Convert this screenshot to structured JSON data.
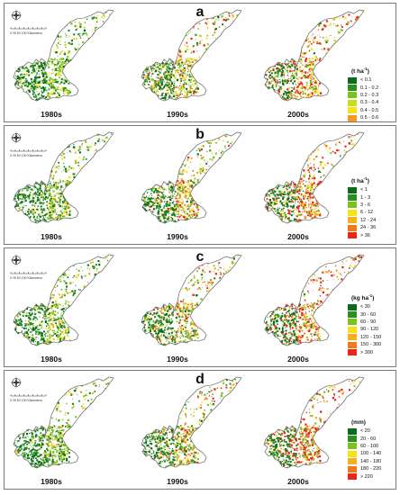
{
  "panels": [
    {
      "letter": "a",
      "unit_prefix": "(t ha",
      "unit_sup": "-1",
      "unit_suffix": ")",
      "legend": [
        {
          "label": "< 0.1",
          "color": "#0a6b1b"
        },
        {
          "label": "0.1 - 0.2",
          "color": "#2b8f1f"
        },
        {
          "label": "0.2 - 0.3",
          "color": "#7cc021"
        },
        {
          "label": "0.3 - 0.4",
          "color": "#c9de1f"
        },
        {
          "label": "0.4 - 0.5",
          "color": "#f7e21a"
        },
        {
          "label": "0.5 - 0.6",
          "color": "#f39a1a"
        },
        {
          "label": "> 0.6",
          "color": "#e8261a"
        }
      ],
      "decades": [
        "1980s",
        "1990s",
        "2000s"
      ]
    },
    {
      "letter": "b",
      "unit_prefix": "(t ha",
      "unit_sup": "-1",
      "unit_suffix": ")",
      "legend": [
        {
          "label": "< 1",
          "color": "#0a6b1b"
        },
        {
          "label": "1 - 3",
          "color": "#2b8f1f"
        },
        {
          "label": "3 - 6",
          "color": "#7cc021"
        },
        {
          "label": "6 - 12",
          "color": "#f7e21a"
        },
        {
          "label": "12 - 24",
          "color": "#f6b01a"
        },
        {
          "label": "24 - 36",
          "color": "#f07a1a"
        },
        {
          "label": "> 36",
          "color": "#e8261a"
        }
      ],
      "decades": [
        "1980s",
        "1990s",
        "2000s"
      ]
    },
    {
      "letter": "c",
      "unit_prefix": "(kg ha",
      "unit_sup": "-1",
      "unit_suffix": ")",
      "legend": [
        {
          "label": "< 30",
          "color": "#0a6b1b"
        },
        {
          "label": "30 - 60",
          "color": "#2b8f1f"
        },
        {
          "label": "60 - 90",
          "color": "#7cc021"
        },
        {
          "label": "90 - 120",
          "color": "#f7e21a"
        },
        {
          "label": "120 - 150",
          "color": "#f6b01a"
        },
        {
          "label": "150 - 300",
          "color": "#f07a1a"
        },
        {
          "label": "> 300",
          "color": "#e8261a"
        }
      ],
      "decades": [
        "1980s",
        "1990s",
        "2000s"
      ]
    },
    {
      "letter": "d",
      "unit_prefix": "(mm)",
      "unit_sup": "",
      "unit_suffix": "",
      "legend": [
        {
          "label": "< 20",
          "color": "#0a6b1b"
        },
        {
          "label": "20 - 60",
          "color": "#2b8f1f"
        },
        {
          "label": "60 - 100",
          "color": "#7cc021"
        },
        {
          "label": "100 - 140",
          "color": "#f7e21a"
        },
        {
          "label": "140 - 180",
          "color": "#f6b01a"
        },
        {
          "label": "180 - 220",
          "color": "#f07a1a"
        },
        {
          "label": "> 220",
          "color": "#e8261a"
        }
      ],
      "decades": [
        "1980s",
        "1990s",
        "2000s"
      ]
    }
  ],
  "scale_label": "0  25  50     100 Kilometers",
  "colors": {
    "green_dark": "#0a6b1b",
    "green": "#2b8f1f",
    "light_green": "#7cc021",
    "yellow": "#f7e21a",
    "orange": "#f07a1a",
    "red": "#e8261a",
    "border": "#7a7a7a"
  }
}
